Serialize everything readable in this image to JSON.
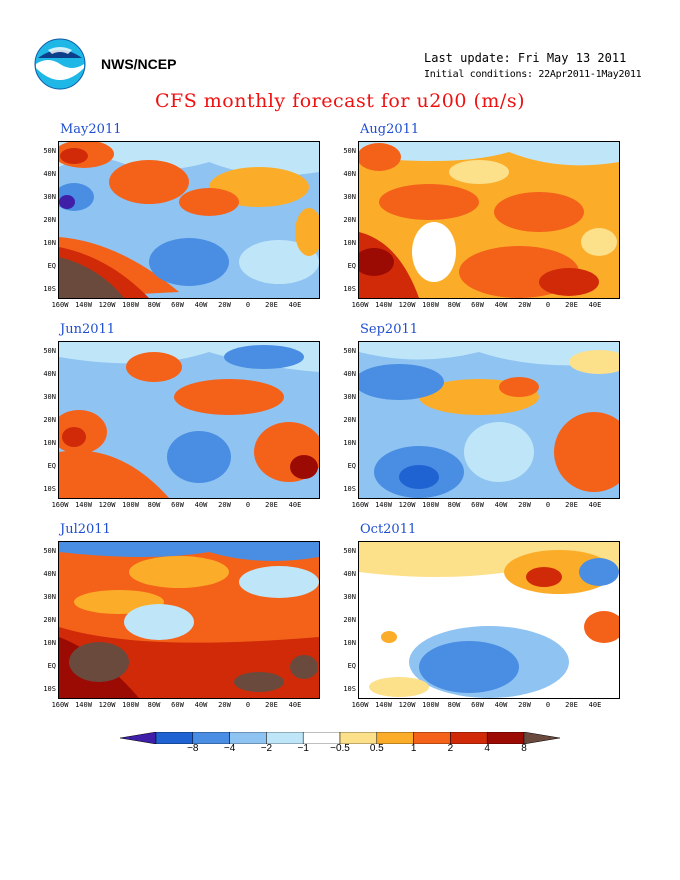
{
  "header": {
    "org": "NWS/NCEP",
    "last_update": "Last update: Fri May 13 2011",
    "initial_conditions": "Initial conditions: 22Apr2011-1May2011",
    "title": "CFS monthly forecast for u200 (m/s)"
  },
  "logo_icon": "noaa-logo-icon",
  "axes": {
    "y_ticks": [
      "50N",
      "40N",
      "30N",
      "20N",
      "10N",
      "EQ",
      "10S"
    ],
    "x_ticks": [
      "160W",
      "140W",
      "120W",
      "100W",
      "80W",
      "60W",
      "40W",
      "20W",
      "0",
      "20E",
      "40E"
    ]
  },
  "panels": [
    {
      "label": "May2011"
    },
    {
      "label": "Aug2011"
    },
    {
      "label": "Jun2011"
    },
    {
      "label": "Sep2011"
    },
    {
      "label": "Jul2011"
    },
    {
      "label": "Oct2011"
    }
  ],
  "colorbar": {
    "ticks": [
      "−8",
      "−4",
      "−2",
      "−1",
      "−0.5",
      "0.5",
      "1",
      "2",
      "4",
      "8"
    ],
    "colors": [
      "#3f1fa8",
      "#1f62d1",
      "#4a8ee3",
      "#8fc3f2",
      "#bfe6f8",
      "#ffffff",
      "#fde08a",
      "#fbad2a",
      "#f4621a",
      "#d02a08",
      "#9c0a04",
      "#6b4a3e"
    ]
  }
}
